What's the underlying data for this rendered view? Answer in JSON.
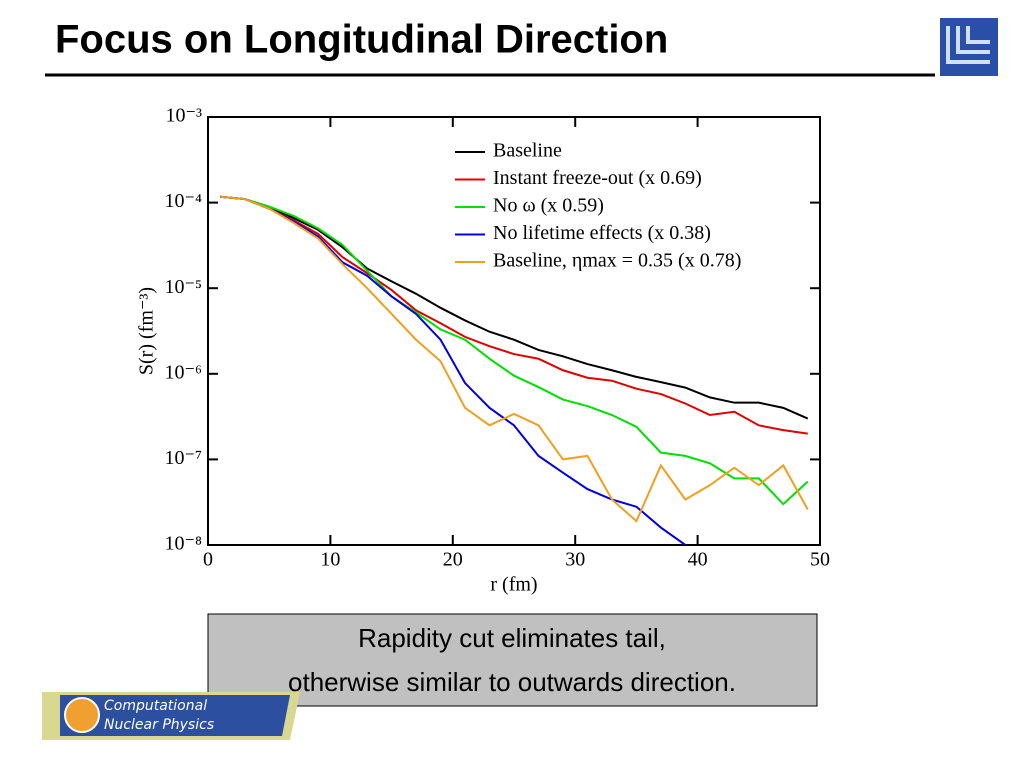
{
  "title": "Focus on Longitudinal Direction",
  "caption": [
    "Rapidity cut eliminates tail,",
    "otherwise similar to outwards direction."
  ],
  "logo": [
    "Computational",
    "Nuclear Physics"
  ],
  "chart_data": {
    "type": "line",
    "xlabel": "r (fm)",
    "ylabel": "S(r) (fm⁻³)",
    "x": [
      1,
      3,
      5,
      7,
      9,
      11,
      13,
      15,
      17,
      19,
      21,
      23,
      25,
      27,
      29,
      31,
      33,
      35,
      37,
      39,
      41,
      43,
      45,
      47,
      49
    ],
    "series": [
      {
        "name": "Baseline",
        "color": "#000000",
        "values": [
          0.000117,
          0.00011,
          8.9e-05,
          6.6e-05,
          4.8e-05,
          3e-05,
          1.7e-05,
          1.2e-05,
          8.6e-06,
          5.9e-06,
          4.2e-06,
          3.1e-06,
          2.5e-06,
          1.9e-06,
          1.6e-06,
          1.3e-06,
          1.1e-06,
          9.2e-07,
          8e-07,
          6.9e-07,
          5.3e-07,
          4.6e-07,
          4.6e-07,
          4e-07,
          3e-07
        ]
      },
      {
        "name": "Instant freeze-out (x 0.69)",
        "color": "#e00000",
        "values": [
          0.000117,
          0.00011,
          8.5e-05,
          6.2e-05,
          4.3e-05,
          2.3e-05,
          1.5e-05,
          9.5e-06,
          5.5e-06,
          3.9e-06,
          2.7e-06,
          2.1e-06,
          1.7e-06,
          1.5e-06,
          1.1e-06,
          9e-07,
          8.3e-07,
          6.7e-07,
          5.8e-07,
          4.5e-07,
          3.3e-07,
          3.6e-07,
          2.5e-07,
          2.2e-07,
          2e-07
        ]
      },
      {
        "name": "No ω (x 0.59)",
        "color": "#00e000",
        "values": [
          0.000117,
          0.00011,
          9e-05,
          7e-05,
          5e-05,
          3.2e-05,
          1.6e-05,
          8e-06,
          5.2e-06,
          3.3e-06,
          2.5e-06,
          1.5e-06,
          9.5e-07,
          7e-07,
          5e-07,
          4.2e-07,
          3.3e-07,
          2.4e-07,
          1.2e-07,
          1.1e-07,
          9e-08,
          6e-08,
          6e-08,
          3e-08,
          5.5e-08
        ]
      },
      {
        "name": "No lifetime effects (x 0.38)",
        "color": "#0000e0",
        "values": [
          0.000117,
          0.00011,
          8.5e-05,
          6e-05,
          4e-05,
          2e-05,
          1.4e-05,
          8e-06,
          5e-06,
          2.5e-06,
          7.8e-07,
          4e-07,
          2.5e-07,
          1.1e-07,
          7e-08,
          4.5e-08,
          3.4e-08,
          2.8e-08,
          1.6e-08,
          1e-08,
          null,
          null,
          null,
          null,
          null
        ]
      },
      {
        "name": "Baseline, ηmax = 0.35 (x 0.78)",
        "color": "#f0a020",
        "values": [
          0.000117,
          0.00011,
          8.5e-05,
          5.8e-05,
          3.8e-05,
          1.9e-05,
          1e-05,
          5e-06,
          2.5e-06,
          1.4e-06,
          4e-07,
          2.5e-07,
          3.4e-07,
          2.5e-07,
          1e-07,
          1.1e-07,
          3.4e-08,
          1.9e-08,
          8.5e-08,
          3.4e-08,
          5e-08,
          8e-08,
          5e-08,
          8.5e-08,
          2.6e-08
        ]
      }
    ],
    "xlim": [
      0,
      50
    ],
    "xticks": [
      0,
      10,
      20,
      30,
      40,
      50
    ],
    "ylim": [
      1e-08,
      0.001
    ],
    "ylog": true,
    "yticks": [
      {
        "value": 1e-08,
        "label": "10⁻⁸"
      },
      {
        "value": 1e-07,
        "label": "10⁻⁷"
      },
      {
        "value": 1e-06,
        "label": "10⁻⁶"
      },
      {
        "value": 1e-05,
        "label": "10⁻⁵"
      },
      {
        "value": 0.0001,
        "label": "10⁻⁴"
      },
      {
        "value": 0.001,
        "label": "10⁻³"
      }
    ],
    "legend": "upper right"
  }
}
